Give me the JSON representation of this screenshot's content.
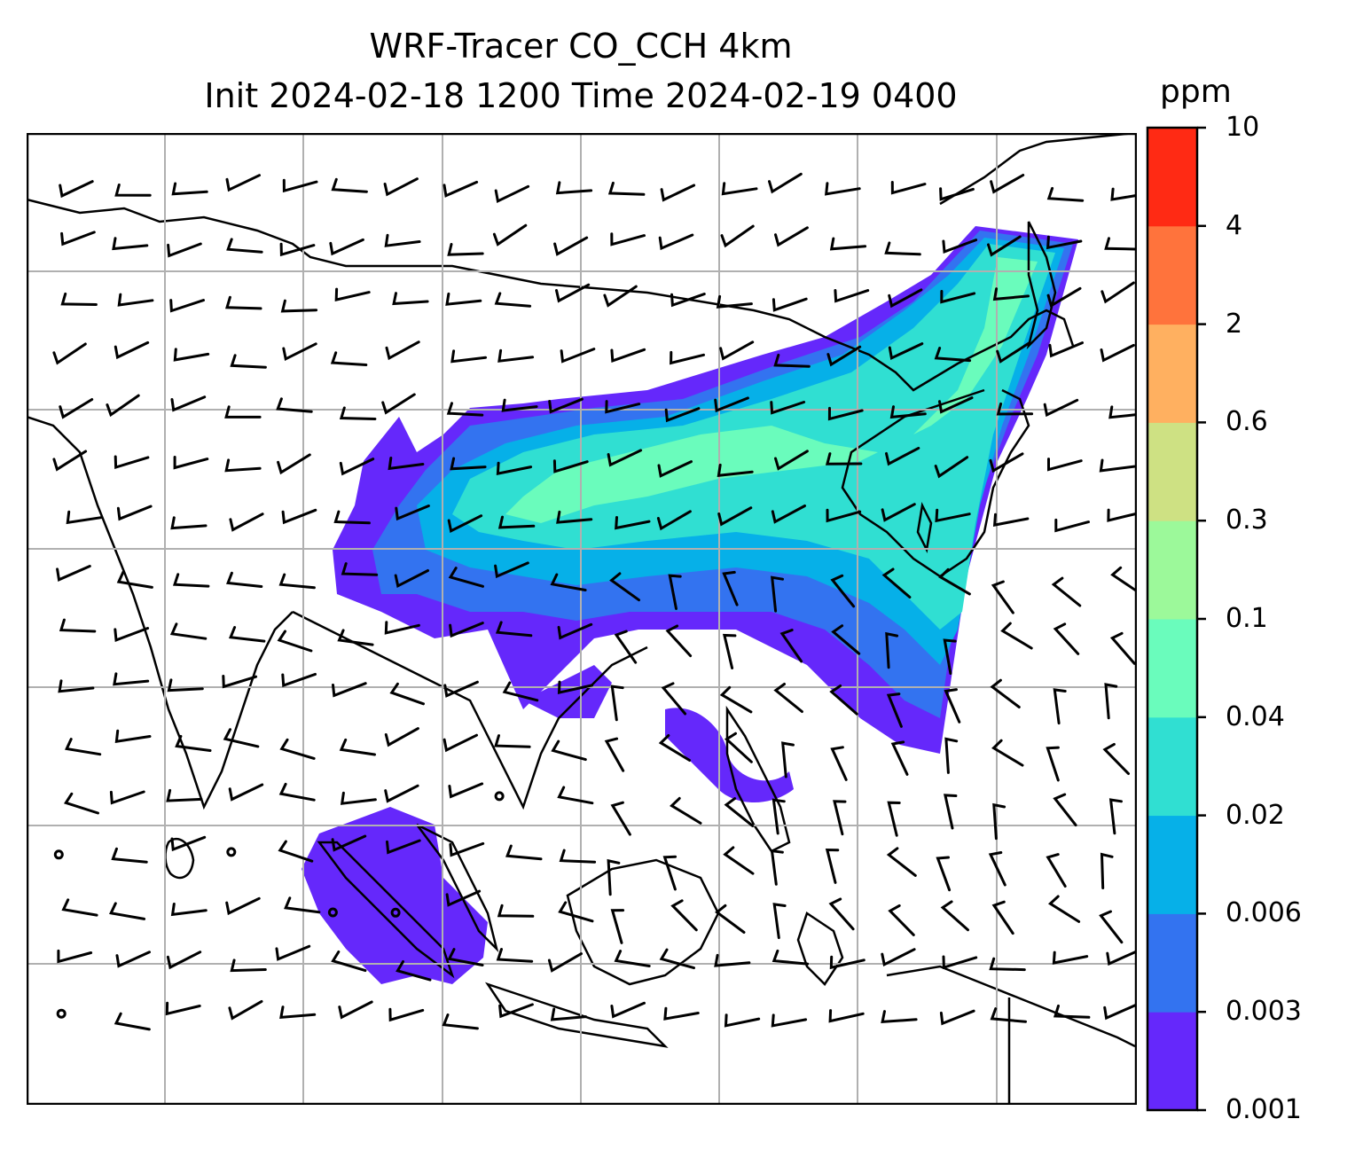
{
  "title": {
    "line1": "WRF-Tracer CO_CCH 4km",
    "line2": "Init 2024-02-18 1200 Time 2024-02-19 0400"
  },
  "colorbar": {
    "unit": "ppm",
    "levels": [
      "0.001",
      "0.003",
      "0.006",
      "0.02",
      "0.04",
      "0.1",
      "0.3",
      "0.6",
      "2",
      "4",
      "10"
    ],
    "colors": [
      "#6528fb",
      "#3373f0",
      "#06b0e8",
      "#30dfd2",
      "#6afcbc",
      "#9cf99a",
      "#cee183",
      "#ffb060",
      "#ff733c",
      "#ff2a14"
    ]
  },
  "map": {
    "land_color": "#ffffff",
    "coastline_color": "#000000",
    "grid_color": "#b0b0b0",
    "grid": true,
    "wind_barbs": true
  }
}
